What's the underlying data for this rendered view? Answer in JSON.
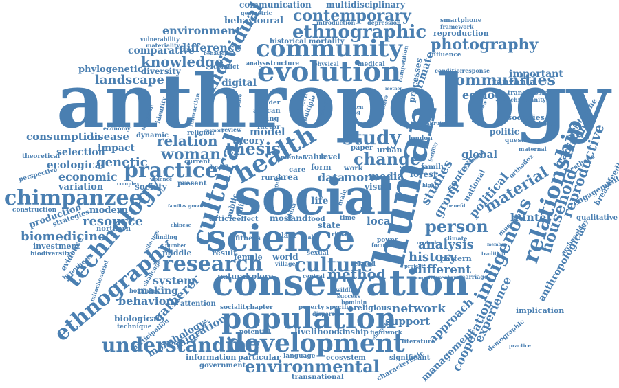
{
  "colors": {
    "word": "#4a7fb1",
    "background": "#ffffff"
  },
  "words": [
    {
      "text": "anthropology"
    },
    {
      "text": "social"
    },
    {
      "text": "human"
    },
    {
      "text": "science"
    },
    {
      "text": "conservation"
    },
    {
      "text": "population"
    },
    {
      "text": "development"
    },
    {
      "text": "evolution"
    },
    {
      "text": "community"
    },
    {
      "text": "cultural"
    },
    {
      "text": "health"
    },
    {
      "text": "research"
    },
    {
      "text": "technology"
    },
    {
      "text": "ethnography"
    },
    {
      "text": "chimpanzee"
    },
    {
      "text": "relationship"
    },
    {
      "text": "practice"
    },
    {
      "text": "environmental"
    },
    {
      "text": "understanding"
    },
    {
      "text": "ethnographic"
    },
    {
      "text": "contemporary"
    },
    {
      "text": "communities"
    },
    {
      "text": "photography"
    },
    {
      "text": "culture"
    },
    {
      "text": "individual"
    },
    {
      "text": "indigenous"
    },
    {
      "text": "household"
    },
    {
      "text": "material"
    },
    {
      "text": "person"
    },
    {
      "text": "study"
    },
    {
      "text": "thesis"
    },
    {
      "text": "change"
    },
    {
      "text": "method"
    },
    {
      "text": "woman"
    },
    {
      "text": "relation"
    },
    {
      "text": "knowledge"
    },
    {
      "text": "landscape"
    },
    {
      "text": "environment"
    },
    {
      "text": "difference"
    },
    {
      "text": "communication"
    },
    {
      "text": "multidisciplinary"
    },
    {
      "text": "behavioural"
    },
    {
      "text": "comparative"
    },
    {
      "text": "phylogenetic"
    },
    {
      "text": "diversity"
    },
    {
      "text": "economic"
    },
    {
      "text": "genetic"
    },
    {
      "text": "ecological"
    },
    {
      "text": "selection"
    },
    {
      "text": "impact"
    },
    {
      "text": "disease"
    },
    {
      "text": "consumption"
    },
    {
      "text": "resource"
    },
    {
      "text": "biomedicine"
    },
    {
      "text": "variation"
    },
    {
      "text": "society"
    },
    {
      "text": "modern"
    },
    {
      "text": "investment"
    },
    {
      "text": "evidence"
    },
    {
      "text": "system"
    },
    {
      "text": "making"
    },
    {
      "text": "behaviour"
    },
    {
      "text": "gatherer"
    },
    {
      "text": "biological"
    },
    {
      "text": "migration"
    },
    {
      "text": "morphology"
    },
    {
      "text": "information"
    },
    {
      "text": "government"
    },
    {
      "text": "particular"
    },
    {
      "text": "livelihood"
    },
    {
      "text": "kinship"
    },
    {
      "text": "network"
    },
    {
      "text": "support"
    },
    {
      "text": "approach"
    },
    {
      "text": "management"
    },
    {
      "text": "cooperation"
    },
    {
      "text": "experience"
    },
    {
      "text": "implication"
    },
    {
      "text": "anthropological"
    },
    {
      "text": "reproductive"
    },
    {
      "text": "traditional"
    },
    {
      "text": "political"
    },
    {
      "text": "hunter"
    },
    {
      "text": "group"
    },
    {
      "text": "studies"
    },
    {
      "text": "history"
    },
    {
      "text": "analysis"
    },
    {
      "text": "different"
    },
    {
      "text": "pattern"
    },
    {
      "text": "media"
    },
    {
      "text": "global"
    },
    {
      "text": "ecology"
    },
    {
      "text": "important"
    },
    {
      "text": "tanzania"
    },
    {
      "text": "primate"
    },
    {
      "text": "processes"
    },
    {
      "text": "digital"
    },
    {
      "text": "data"
    },
    {
      "text": "more"
    },
    {
      "text": "local"
    },
    {
      "text": "life"
    },
    {
      "text": "model"
    },
    {
      "text": "theory"
    },
    {
      "text": "practice"
    },
    {
      "text": "reproduction"
    },
    {
      "text": "smartphone"
    },
    {
      "text": "framework"
    },
    {
      "text": "depression"
    },
    {
      "text": "introduction"
    },
    {
      "text": "historical mortality"
    },
    {
      "text": "geometric"
    },
    {
      "text": "vulnerability"
    },
    {
      "text": "materiality"
    },
    {
      "text": "influence"
    },
    {
      "text": "transmission"
    },
    {
      "text": "christianity"
    },
    {
      "text": "condition"
    },
    {
      "text": "response"
    },
    {
      "text": "pleistocene"
    },
    {
      "text": "cambodia"
    },
    {
      "text": "societies"
    },
    {
      "text": "question"
    },
    {
      "text": "breastfeeding"
    },
    {
      "text": "engagement"
    },
    {
      "text": "qualitative"
    },
    {
      "text": "archaeology"
    },
    {
      "text": "aesthetic"
    },
    {
      "text": "maternal"
    },
    {
      "text": "demographic"
    },
    {
      "text": "characteristic"
    },
    {
      "text": "significant"
    },
    {
      "text": "literature"
    },
    {
      "text": "transnational"
    },
    {
      "text": "ecosystem"
    },
    {
      "text": "language"
    },
    {
      "text": "fieldwork"
    },
    {
      "text": "religious"
    },
    {
      "text": "poverty"
    },
    {
      "text": "specific"
    },
    {
      "text": "potential"
    },
    {
      "text": "sociality"
    },
    {
      "text": "chapter"
    },
    {
      "text": "attention"
    },
    {
      "text": "technique"
    },
    {
      "text": "participation"
    },
    {
      "text": "explore"
    },
    {
      "text": "natural"
    },
    {
      "text": "world"
    },
    {
      "text": "female"
    },
    {
      "text": "result"
    },
    {
      "text": "middle"
    },
    {
      "text": "current"
    },
    {
      "text": "present"
    },
    {
      "text": "article"
    },
    {
      "text": "effect"
    },
    {
      "text": "fitness"
    },
    {
      "text": "land"
    },
    {
      "text": "most"
    },
    {
      "text": "food"
    },
    {
      "text": "state"
    },
    {
      "text": "form"
    },
    {
      "text": "care"
    },
    {
      "text": "area"
    },
    {
      "text": "rural"
    },
    {
      "text": "work"
    },
    {
      "text": "visual"
    },
    {
      "text": "family"
    },
    {
      "text": "forest"
    },
    {
      "text": "context"
    },
    {
      "text": "national"
    },
    {
      "text": "production"
    },
    {
      "text": "construction"
    },
    {
      "text": "strategies"
    },
    {
      "text": "northern"
    },
    {
      "text": "perspective"
    },
    {
      "text": "theoretical"
    },
    {
      "text": "biodiversity"
    },
    {
      "text": "hypothesis"
    },
    {
      "text": "mitochondrial"
    },
    {
      "text": "hominins"
    },
    {
      "text": "challenge"
    },
    {
      "text": "dynamic"
    },
    {
      "text": "economy"
    },
    {
      "text": "religion"
    },
    {
      "text": "identity"
    },
    {
      "text": "medicine"
    },
    {
      "text": "interaction"
    },
    {
      "text": "conflict"
    },
    {
      "text": "behavior"
    },
    {
      "text": "analyse"
    },
    {
      "text": "structure"
    },
    {
      "text": "physical"
    },
    {
      "text": "medical"
    },
    {
      "text": "gender"
    },
    {
      "text": "african"
    },
    {
      "text": "living"
    },
    {
      "text": "factor"
    },
    {
      "text": "southern"
    },
    {
      "text": "multiple"
    },
    {
      "text": "mental"
    },
    {
      "text": "value"
    },
    {
      "text": "paper"
    },
    {
      "text": "urban"
    },
    {
      "text": "london"
    },
    {
      "text": "examine"
    },
    {
      "text": "politic"
    },
    {
      "text": "orthodox"
    },
    {
      "text": "museum"
    },
    {
      "text": "climate"
    },
    {
      "text": "tradition"
    },
    {
      "text": "western"
    },
    {
      "text": "marriage"
    },
    {
      "text": "related"
    },
    {
      "text": "central"
    },
    {
      "text": "sexual"
    },
    {
      "text": "village"
    },
    {
      "text": "ritual"
    },
    {
      "text": "plant"
    },
    {
      "text": "scale"
    },
    {
      "text": "brazil"
    },
    {
      "text": "public"
    },
    {
      "text": "child"
    },
    {
      "text": "china"
    },
    {
      "text": "body"
    },
    {
      "text": "level"
    },
    {
      "text": "time"
    },
    {
      "text": "role"
    },
    {
      "text": "male"
    },
    {
      "text": "focus"
    },
    {
      "text": "power"
    },
    {
      "text": "wildlife"
    },
    {
      "text": "success"
    },
    {
      "text": "dispersal"
    },
    {
      "text": "hominin"
    },
    {
      "text": "project"
    },
    {
      "text": "countries"
    },
    {
      "text": "wellbeing"
    },
    {
      "text": "violence"
    },
    {
      "text": "complex"
    },
    {
      "text": "wealth"
    },
    {
      "text": "finding"
    },
    {
      "text": "collection"
    },
    {
      "text": "number"
    },
    {
      "text": "families"
    },
    {
      "text": "growth"
    },
    {
      "text": "chinese"
    },
    {
      "text": "citizen"
    },
    {
      "text": "young"
    },
    {
      "text": "design"
    },
    {
      "text": "recent"
    },
    {
      "text": "inclusive"
    },
    {
      "text": "competition"
    },
    {
      "text": "mother"
    },
    {
      "text": "interview"
    },
    {
      "text": "activities"
    },
    {
      "text": "altruism"
    },
    {
      "text": "service"
    },
    {
      "text": "fertility"
    },
    {
      "text": "higher"
    },
    {
      "text": "benefit"
    },
    {
      "text": "control"
    },
    {
      "text": "member"
    },
    {
      "text": "movement"
    },
    {
      "text": "review"
    },
    {
      "text": "memory"
    },
    {
      "text": "transition"
    },
    {
      "text": "adaptive"
    }
  ]
}
